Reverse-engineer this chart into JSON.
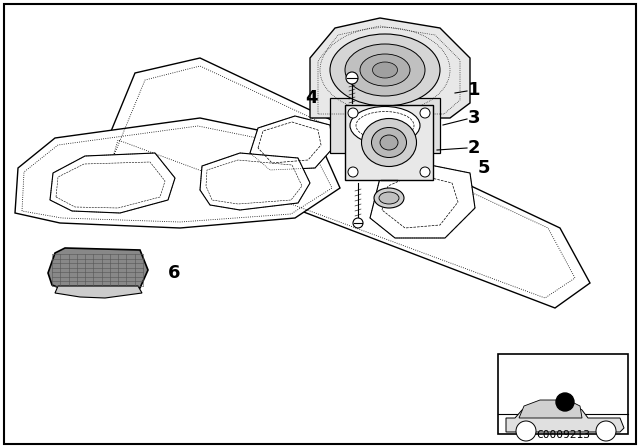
{
  "background_color": "#ffffff",
  "border_color": "#000000",
  "diagram_id": "C0009213",
  "font_size_labels": 12,
  "font_size_id": 8,
  "line_color": "#000000",
  "shelf_color": "#ffffff",
  "grille_color": "#888888"
}
